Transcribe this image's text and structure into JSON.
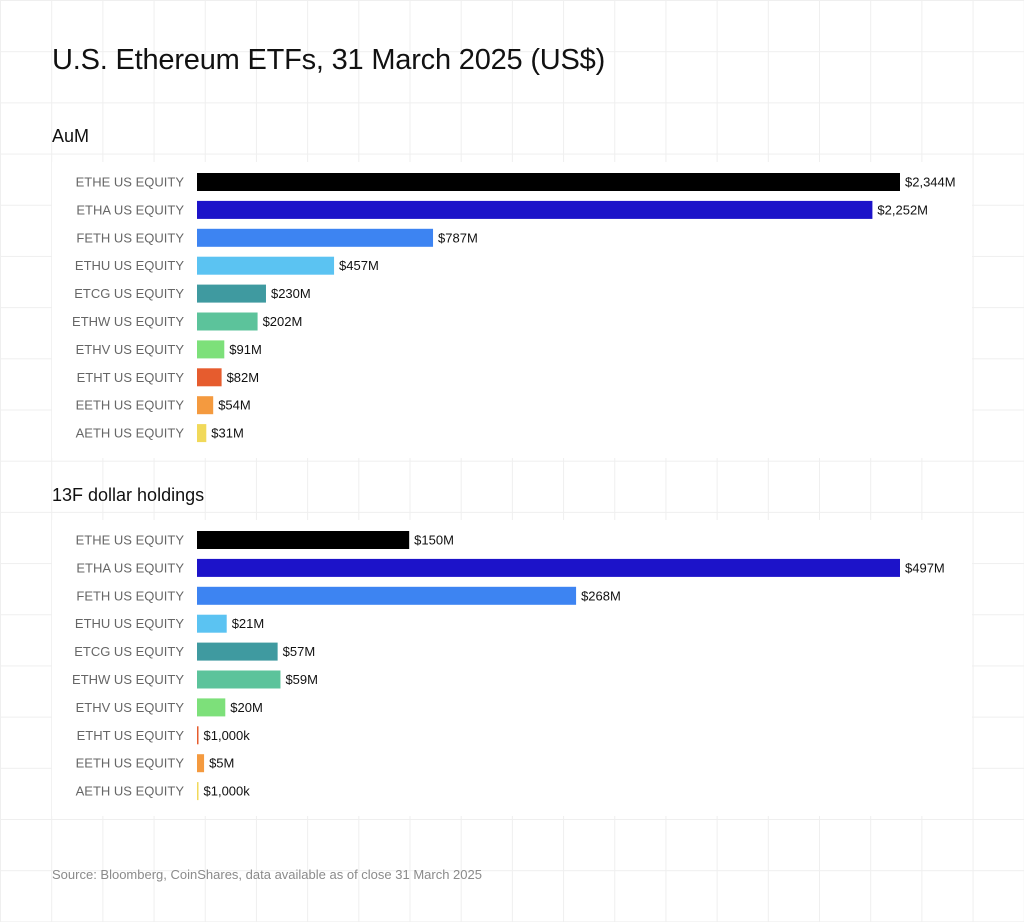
{
  "title": "U.S. Ethereum ETFs, 31 March 2025 (US$)",
  "source": "Source: Bloomberg, CoinShares, data available as of close 31 March 2025",
  "chart_data": [
    {
      "type": "bar",
      "orientation": "horizontal",
      "title": "AuM",
      "unit": "US$ millions",
      "categories": [
        "ETHE US EQUITY",
        "ETHA US EQUITY",
        "FETH US EQUITY",
        "ETHU US EQUITY",
        "ETCG US EQUITY",
        "ETHW US EQUITY",
        "ETHV US EQUITY",
        "ETHT US EQUITY",
        "EETH US EQUITY",
        "AETH US EQUITY"
      ],
      "values": [
        2344,
        2252,
        787,
        457,
        230,
        202,
        91,
        82,
        54,
        31
      ],
      "value_labels": [
        "$2,344M",
        "$2,252M",
        "$787M",
        "$457M",
        "$230M",
        "$202M",
        "$91M",
        "$82M",
        "$54M",
        "$31M"
      ],
      "colors": [
        "#000000",
        "#1c13c9",
        "#3d84f2",
        "#5bc3f2",
        "#3f9aa0",
        "#5cc39b",
        "#7de07a",
        "#e65c2e",
        "#f49a3f",
        "#f1d95a"
      ],
      "xlim": [
        0,
        2344
      ],
      "grid": false,
      "legend": "none"
    },
    {
      "type": "bar",
      "orientation": "horizontal",
      "title": "13F dollar holdings",
      "unit": "US$ millions",
      "categories": [
        "ETHE US EQUITY",
        "ETHA US EQUITY",
        "FETH US EQUITY",
        "ETHU US EQUITY",
        "ETCG US EQUITY",
        "ETHW US EQUITY",
        "ETHV US EQUITY",
        "ETHT US EQUITY",
        "EETH US EQUITY",
        "AETH US EQUITY"
      ],
      "values": [
        150,
        497,
        268,
        21,
        57,
        59,
        20,
        1,
        5,
        1
      ],
      "value_labels": [
        "$150M",
        "$497M",
        "$268M",
        "$21M",
        "$57M",
        "$59M",
        "$20M",
        "$1,000k",
        "$5M",
        "$1,000k"
      ],
      "colors": [
        "#000000",
        "#1c13c9",
        "#3d84f2",
        "#5bc3f2",
        "#3f9aa0",
        "#5cc39b",
        "#7de07a",
        "#e65c2e",
        "#f49a3f",
        "#f1d95a"
      ],
      "xlim": [
        0,
        497
      ],
      "grid": false,
      "legend": "none"
    }
  ]
}
